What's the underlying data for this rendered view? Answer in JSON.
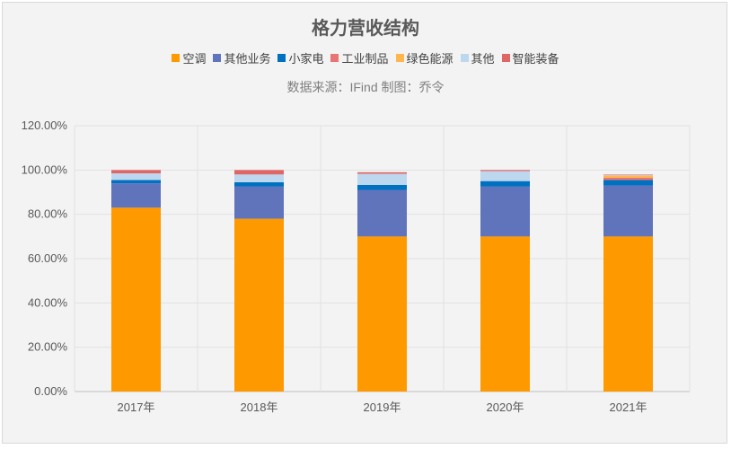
{
  "chart_data": {
    "type": "bar",
    "stacked": true,
    "title": "格力营收结构",
    "subtitle": "数据来源：IFind 制图：乔令",
    "categories": [
      "2017年",
      "2018年",
      "2019年",
      "2020年",
      "2021年"
    ],
    "ylim": [
      0,
      1.2
    ],
    "yticks": [
      "0.00%",
      "20.00%",
      "40.00%",
      "60.00%",
      "80.00%",
      "100.00%",
      "120.00%"
    ],
    "legend_position": "top",
    "grid": true,
    "series": [
      {
        "name": "空调",
        "color": "#ff9900",
        "values": [
          0.83,
          0.78,
          0.7,
          0.7,
          0.7
        ]
      },
      {
        "name": "其他业务",
        "color": "#6074bb",
        "values": [
          0.11,
          0.145,
          0.21,
          0.225,
          0.23
        ]
      },
      {
        "name": "小家电",
        "color": "#0070c0",
        "values": [
          0.015,
          0.02,
          0.023,
          0.025,
          0.025
        ]
      },
      {
        "name": "工业制品",
        "color": "#e87474",
        "values": [
          0.0,
          0.0,
          0.0,
          0.0,
          0.01
        ]
      },
      {
        "name": "绿色能源",
        "color": "#ffb74d",
        "values": [
          0.0,
          0.0,
          0.0,
          0.0,
          0.01
        ]
      },
      {
        "name": "其他",
        "color": "#bdd7ee",
        "values": [
          0.03,
          0.035,
          0.05,
          0.045,
          0.003
        ]
      },
      {
        "name": "智能装备",
        "color": "#e06666",
        "values": [
          0.015,
          0.02,
          0.007,
          0.005,
          0.002
        ]
      }
    ]
  }
}
